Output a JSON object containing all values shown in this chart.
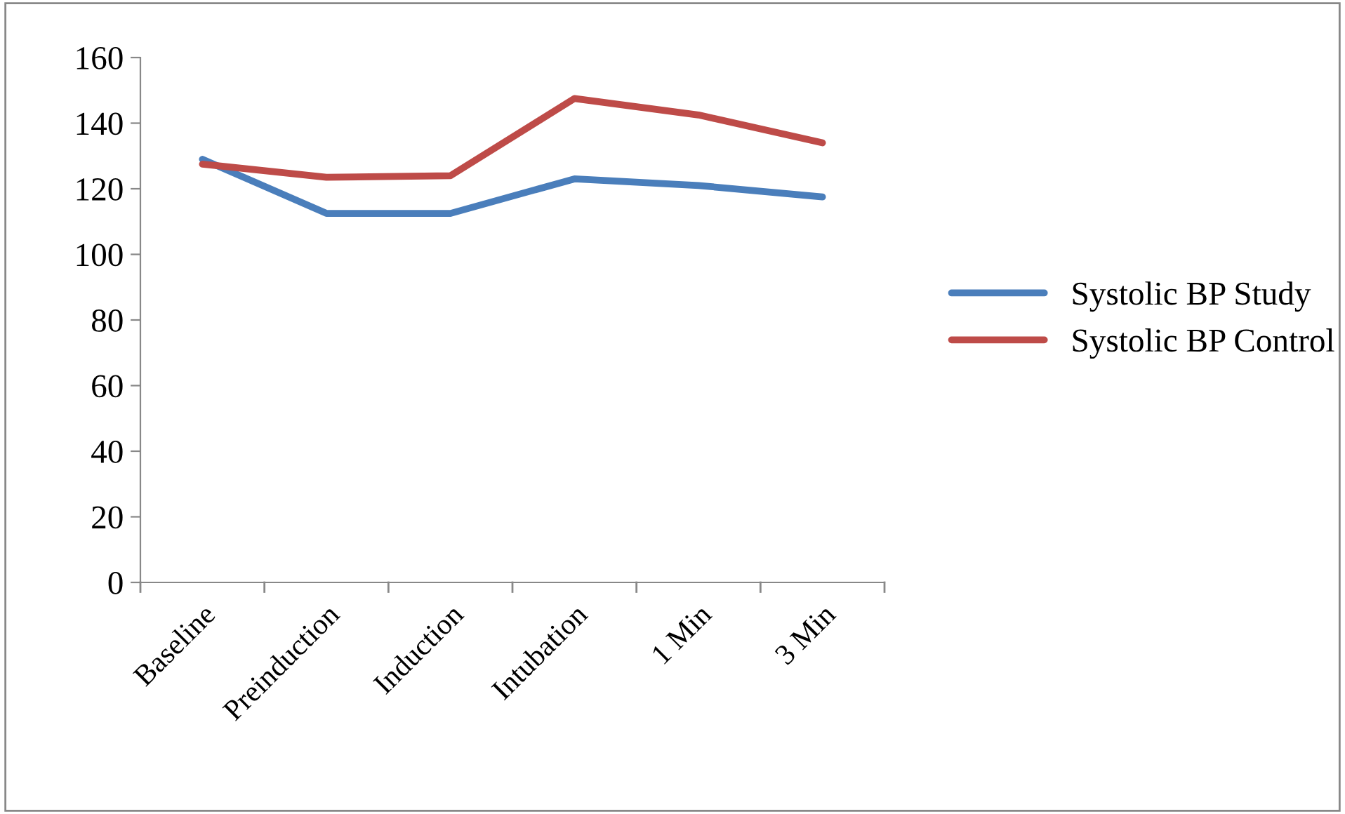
{
  "chart_data": {
    "type": "line",
    "categories": [
      "Baseline",
      "Preinduction",
      "Induction",
      "Intubation",
      "1 Min",
      "3 Min"
    ],
    "series": [
      {
        "name": "Systolic BP Study",
        "color": "#4a7ebb",
        "values": [
          129,
          112.5,
          112.5,
          123,
          121,
          117.5
        ]
      },
      {
        "name": "Systolic BP Control",
        "color": "#be4b48",
        "values": [
          127.5,
          123.5,
          124,
          147.5,
          142.5,
          134
        ]
      }
    ],
    "ylim": [
      0,
      160
    ],
    "yticks": [
      0,
      20,
      40,
      60,
      80,
      100,
      120,
      140,
      160
    ],
    "grid": false,
    "legend": "right",
    "marker": "none",
    "line_style": "solid"
  }
}
